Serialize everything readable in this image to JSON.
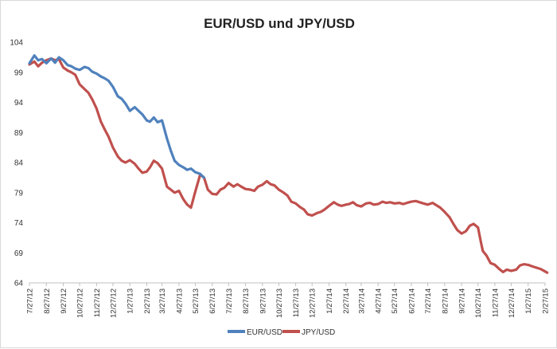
{
  "chart_data": {
    "type": "line",
    "title": "EUR/USD und JPY/USD",
    "ylim": [
      64,
      104
    ],
    "yticks": [
      64,
      69,
      74,
      79,
      84,
      89,
      94,
      99,
      104
    ],
    "x_dates": [
      "7/27/12",
      "8/27/12",
      "9/27/12",
      "10/27/12",
      "11/27/12",
      "12/27/12",
      "1/27/13",
      "2/27/13",
      "3/27/13",
      "4/27/13",
      "5/27/13",
      "6/27/13",
      "7/27/13",
      "8/27/13",
      "9/27/13",
      "10/27/13",
      "11/27/13",
      "12/27/13",
      "1/27/14",
      "2/27/14",
      "3/27/14",
      "4/27/14",
      "5/27/14",
      "6/27/14",
      "7/27/14",
      "8/27/14",
      "9/27/14",
      "10/27/14",
      "11/27/14",
      "12/27/14",
      "1/27/15",
      "2/27/15"
    ],
    "x_labels": [
      "7/27/12",
      "8/27/12",
      "9/27/12",
      "10/27/12",
      "11/27/12",
      "12/27/12",
      "1/27/13",
      "2/27/13",
      "3/27/13",
      "4/27/13",
      "5/27/13",
      "6/27/13",
      "7/27/13",
      "8/27/13",
      "9/27/13",
      "10/27/13",
      "11/27/13",
      "12/27/13",
      "1/27/14",
      "2/27/14",
      "3/27/14",
      "4/27/14",
      "5/27/14",
      "6/27/14",
      "7/27/14",
      "8/27/14",
      "9/27/14",
      "10/27/14",
      "11/27/14",
      "12/27/14",
      "1/27/15",
      "2/27/15"
    ],
    "grid": false,
    "legend_position": "bottom",
    "series": [
      {
        "name": "EUR/USD",
        "color": "#4f81bd",
        "points": [
          [
            "7/27/12",
            100.5
          ],
          [
            "8/5/12",
            101.8
          ],
          [
            "8/12/12",
            101.0
          ],
          [
            "8/19/12",
            101.2
          ],
          [
            "8/27/12",
            100.5
          ],
          [
            "9/5/12",
            101.3
          ],
          [
            "9/12/12",
            100.6
          ],
          [
            "9/19/12",
            101.5
          ],
          [
            "9/27/12",
            101.0
          ],
          [
            "10/5/12",
            100.2
          ],
          [
            "10/12/12",
            100.0
          ],
          [
            "10/19/12",
            99.6
          ],
          [
            "10/27/12",
            99.4
          ],
          [
            "11/5/12",
            99.9
          ],
          [
            "11/12/12",
            99.7
          ],
          [
            "11/19/12",
            99.1
          ],
          [
            "11/27/12",
            98.8
          ],
          [
            "12/5/12",
            98.3
          ],
          [
            "12/12/12",
            98.0
          ],
          [
            "12/19/12",
            97.6
          ],
          [
            "12/27/12",
            96.6
          ],
          [
            "1/5/13",
            95.0
          ],
          [
            "1/12/13",
            94.6
          ],
          [
            "1/19/13",
            93.8
          ],
          [
            "1/27/13",
            92.6
          ],
          [
            "2/5/13",
            93.2
          ],
          [
            "2/12/13",
            92.6
          ],
          [
            "2/19/13",
            92.0
          ],
          [
            "2/27/13",
            91.0
          ],
          [
            "3/5/13",
            90.8
          ],
          [
            "3/12/13",
            91.5
          ],
          [
            "3/19/13",
            90.7
          ],
          [
            "3/27/13",
            91.0
          ],
          [
            "4/5/13",
            88.0
          ],
          [
            "4/12/13",
            86.0
          ],
          [
            "4/19/13",
            84.3
          ],
          [
            "4/27/13",
            83.6
          ],
          [
            "5/5/13",
            83.2
          ],
          [
            "5/12/13",
            82.8
          ],
          [
            "5/19/13",
            83.0
          ],
          [
            "5/27/13",
            82.4
          ],
          [
            "6/5/13",
            82.1
          ],
          [
            "6/12/13",
            81.5
          ]
        ]
      },
      {
        "name": "JPY/USD",
        "color": "#c0504d",
        "points": [
          [
            "7/27/12",
            100.3
          ],
          [
            "8/5/12",
            100.8
          ],
          [
            "8/12/12",
            100.0
          ],
          [
            "8/19/12",
            100.6
          ],
          [
            "8/27/12",
            101.0
          ],
          [
            "9/5/12",
            101.3
          ],
          [
            "9/12/12",
            101.0
          ],
          [
            "9/19/12",
            101.2
          ],
          [
            "9/27/12",
            99.8
          ],
          [
            "10/5/12",
            99.3
          ],
          [
            "10/12/12",
            99.0
          ],
          [
            "10/19/12",
            98.6
          ],
          [
            "10/27/12",
            97.0
          ],
          [
            "11/5/12",
            96.2
          ],
          [
            "11/12/12",
            95.6
          ],
          [
            "11/19/12",
            94.5
          ],
          [
            "11/27/12",
            93.0
          ],
          [
            "12/5/12",
            90.8
          ],
          [
            "12/12/12",
            89.5
          ],
          [
            "12/19/12",
            88.3
          ],
          [
            "12/27/12",
            86.5
          ],
          [
            "1/5/13",
            85.0
          ],
          [
            "1/12/13",
            84.3
          ],
          [
            "1/19/13",
            84.0
          ],
          [
            "1/27/13",
            84.4
          ],
          [
            "2/5/13",
            83.8
          ],
          [
            "2/12/13",
            83.0
          ],
          [
            "2/19/13",
            82.3
          ],
          [
            "2/27/13",
            82.5
          ],
          [
            "3/5/13",
            83.2
          ],
          [
            "3/12/13",
            84.3
          ],
          [
            "3/19/13",
            83.9
          ],
          [
            "3/27/13",
            83.0
          ],
          [
            "4/5/13",
            80.0
          ],
          [
            "4/12/13",
            79.5
          ],
          [
            "4/19/13",
            79.0
          ],
          [
            "4/27/13",
            79.3
          ],
          [
            "5/5/13",
            77.9
          ],
          [
            "5/12/13",
            77.0
          ],
          [
            "5/19/13",
            76.5
          ],
          [
            "5/27/13",
            79.2
          ],
          [
            "6/5/13",
            82.0
          ],
          [
            "6/12/13",
            81.5
          ],
          [
            "6/19/13",
            79.5
          ],
          [
            "6/27/13",
            78.8
          ],
          [
            "7/5/13",
            78.7
          ],
          [
            "7/12/13",
            79.5
          ],
          [
            "7/19/13",
            79.8
          ],
          [
            "7/27/13",
            80.6
          ],
          [
            "8/5/13",
            80.0
          ],
          [
            "8/12/13",
            80.4
          ],
          [
            "8/19/13",
            80.0
          ],
          [
            "8/27/13",
            79.6
          ],
          [
            "9/5/13",
            79.5
          ],
          [
            "9/12/13",
            79.3
          ],
          [
            "9/19/13",
            80.0
          ],
          [
            "9/27/13",
            80.3
          ],
          [
            "10/5/13",
            80.9
          ],
          [
            "10/12/13",
            80.4
          ],
          [
            "10/19/13",
            80.2
          ],
          [
            "10/27/13",
            79.5
          ],
          [
            "11/5/13",
            79.0
          ],
          [
            "11/12/13",
            78.5
          ],
          [
            "11/19/13",
            77.5
          ],
          [
            "11/27/13",
            77.2
          ],
          [
            "12/5/13",
            76.6
          ],
          [
            "12/12/13",
            76.2
          ],
          [
            "12/19/13",
            75.4
          ],
          [
            "12/27/13",
            75.2
          ],
          [
            "1/5/14",
            75.6
          ],
          [
            "1/12/14",
            75.8
          ],
          [
            "1/19/14",
            76.2
          ],
          [
            "1/27/14",
            76.8
          ],
          [
            "2/5/14",
            77.4
          ],
          [
            "2/12/14",
            77.0
          ],
          [
            "2/19/14",
            76.8
          ],
          [
            "2/27/14",
            77.0
          ],
          [
            "3/5/14",
            77.1
          ],
          [
            "3/12/14",
            77.4
          ],
          [
            "3/19/14",
            76.9
          ],
          [
            "3/27/14",
            76.7
          ],
          [
            "4/5/14",
            77.2
          ],
          [
            "4/12/14",
            77.3
          ],
          [
            "4/19/14",
            77.0
          ],
          [
            "4/27/14",
            77.1
          ],
          [
            "5/5/14",
            77.5
          ],
          [
            "5/12/14",
            77.3
          ],
          [
            "5/19/14",
            77.4
          ],
          [
            "5/27/14",
            77.2
          ],
          [
            "6/5/14",
            77.3
          ],
          [
            "6/12/14",
            77.1
          ],
          [
            "6/19/14",
            77.3
          ],
          [
            "6/27/14",
            77.5
          ],
          [
            "7/5/14",
            77.6
          ],
          [
            "7/12/14",
            77.4
          ],
          [
            "7/19/14",
            77.2
          ],
          [
            "7/27/14",
            77.0
          ],
          [
            "8/5/14",
            77.3
          ],
          [
            "8/12/14",
            76.9
          ],
          [
            "8/19/14",
            76.5
          ],
          [
            "8/27/14",
            75.8
          ],
          [
            "9/5/14",
            74.9
          ],
          [
            "9/12/14",
            73.8
          ],
          [
            "9/19/14",
            72.8
          ],
          [
            "9/27/14",
            72.2
          ],
          [
            "10/5/14",
            72.6
          ],
          [
            "10/12/14",
            73.5
          ],
          [
            "10/19/14",
            73.8
          ],
          [
            "10/27/14",
            73.2
          ],
          [
            "11/2/14",
            70.5
          ],
          [
            "11/5/14",
            69.3
          ],
          [
            "11/12/14",
            68.5
          ],
          [
            "11/19/14",
            67.3
          ],
          [
            "11/27/14",
            67.0
          ],
          [
            "12/5/14",
            66.3
          ],
          [
            "12/12/14",
            65.8
          ],
          [
            "12/19/14",
            66.2
          ],
          [
            "12/27/14",
            66.0
          ],
          [
            "1/5/15",
            66.2
          ],
          [
            "1/12/15",
            66.9
          ],
          [
            "1/19/15",
            67.1
          ],
          [
            "1/27/15",
            67.0
          ],
          [
            "2/5/15",
            66.7
          ],
          [
            "2/12/15",
            66.5
          ],
          [
            "2/19/15",
            66.3
          ],
          [
            "2/27/15",
            65.9
          ],
          [
            "3/3/15",
            65.7
          ]
        ]
      }
    ]
  }
}
